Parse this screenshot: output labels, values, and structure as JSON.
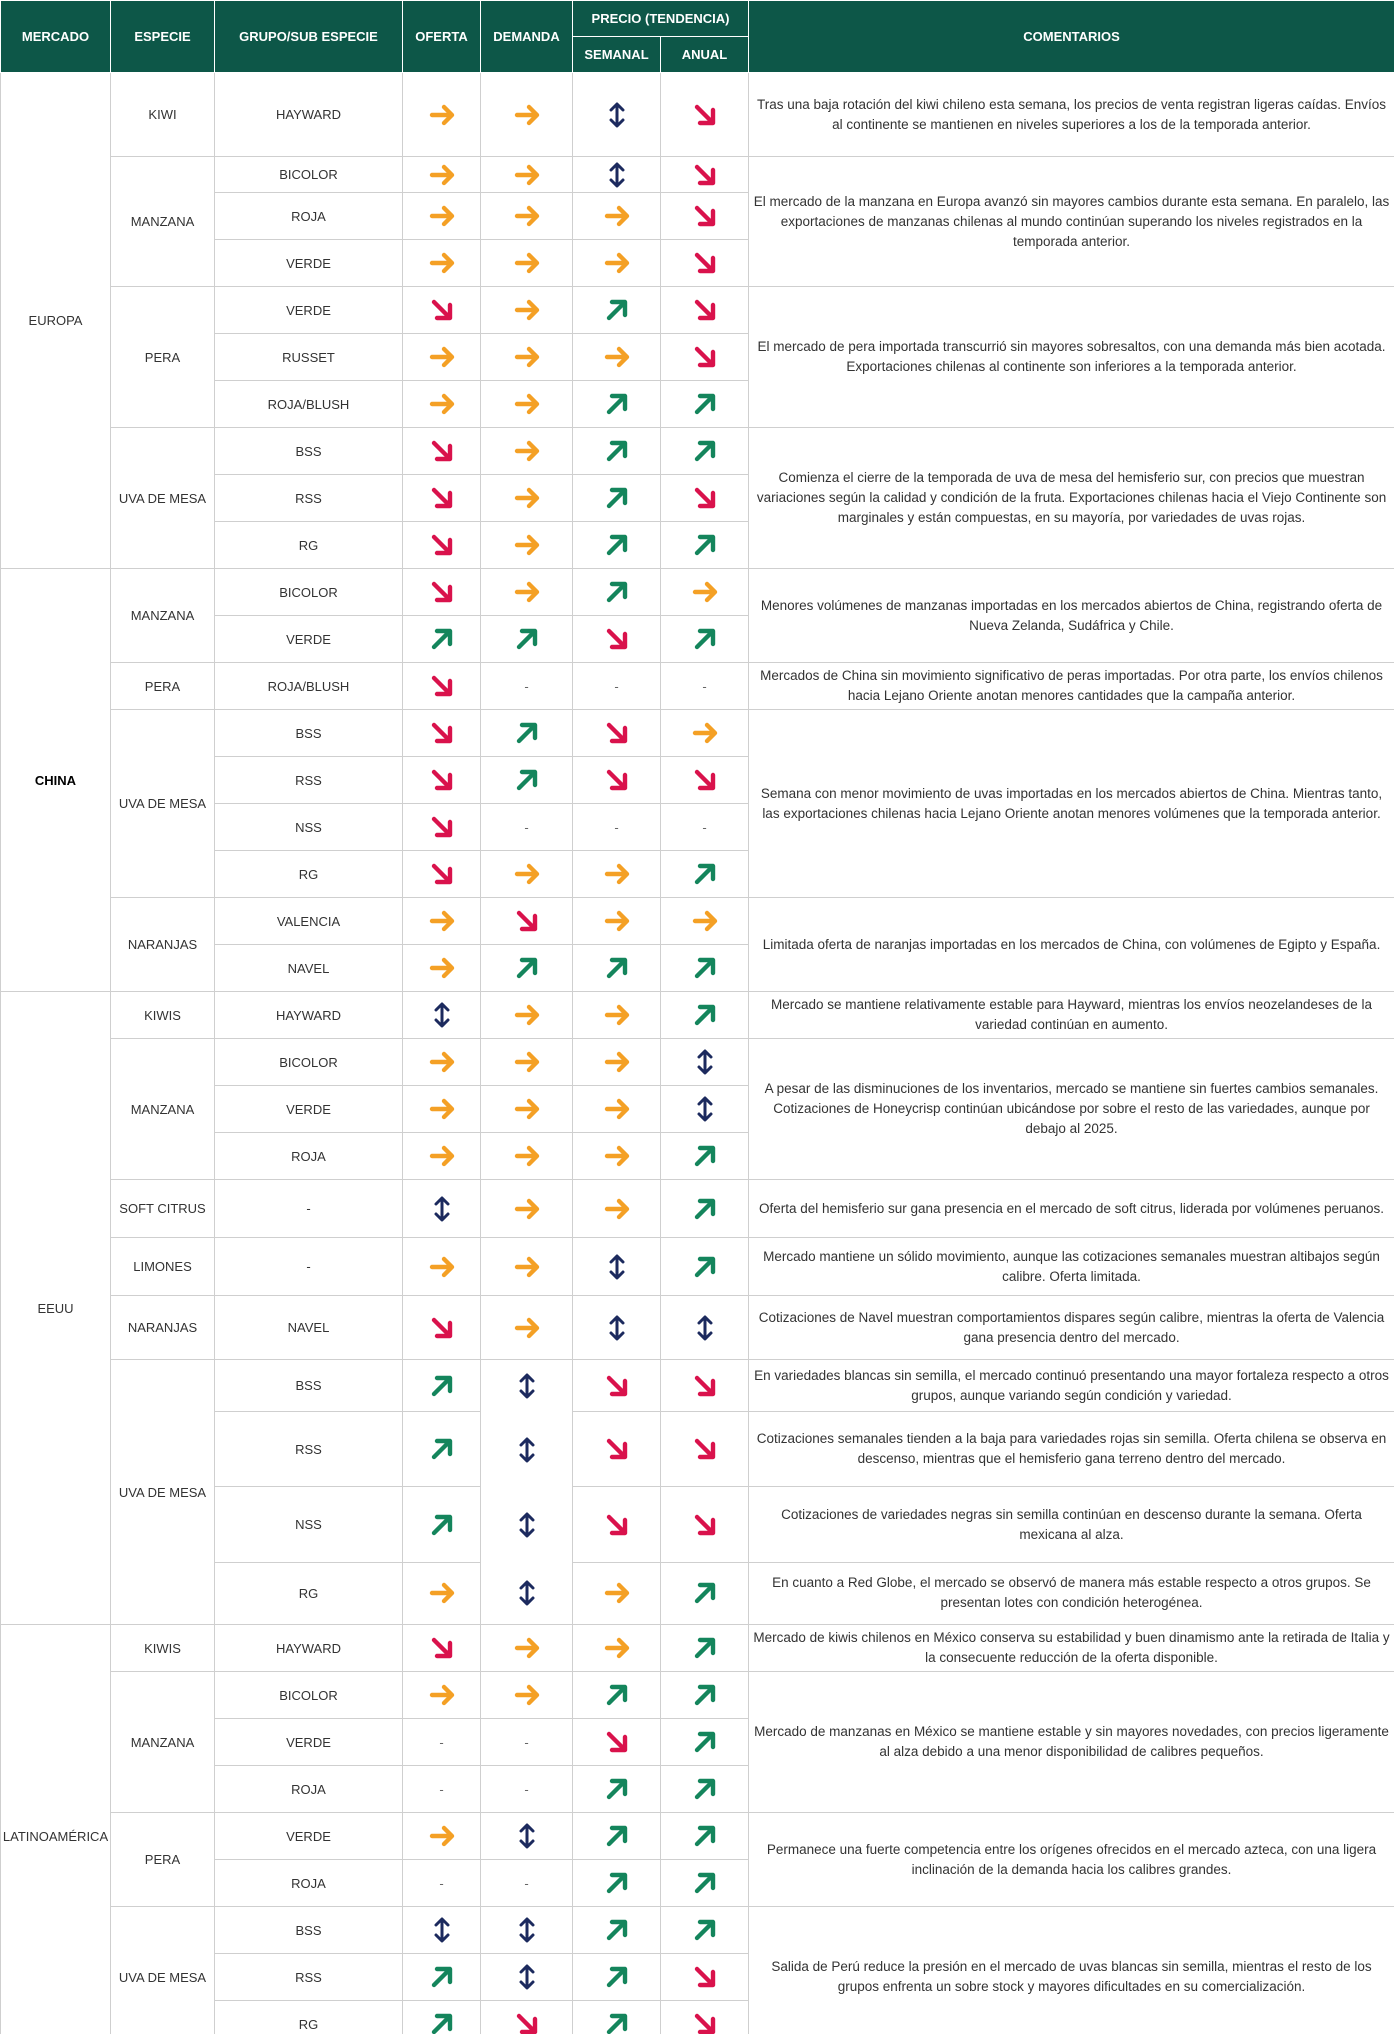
{
  "headers": {
    "mercado": "MERCADO",
    "especie": "ESPECIE",
    "grupo": "GRUPO/SUB ESPECIE",
    "oferta": "OFERTA",
    "demanda": "DEMANDA",
    "precio": "PRECIO (TENDENCIA)",
    "semanal": "SEMANAL",
    "anual": "ANUAL",
    "comentarios": "COMENTARIOS"
  },
  "legend_icons": {
    "right": "arrow-right-icon",
    "down": "arrow-down-right-icon",
    "up": "arrow-up-right-icon",
    "vertical": "arrow-up-down-icon",
    "none": "-"
  },
  "colors": {
    "header": "#0d5748",
    "right": "#f4a025",
    "down": "#d9124c",
    "up": "#14855c",
    "vertical": "#1c2a5e"
  },
  "markets": [
    {
      "name": "EUROPA",
      "species": [
        {
          "name": "KIWI",
          "groups": [
            {
              "name": "HAYWARD",
              "oferta": "right",
              "demanda": "right",
              "semanal": "vertical",
              "anual": "down"
            }
          ],
          "comments": [
            "Tras una baja rotación del kiwi chileno esta semana, los precios de venta registran ligeras caídas. Envíos al continente se mantienen en niveles superiores a los de la temporada anterior."
          ]
        },
        {
          "name": "MANZANA",
          "groups": [
            {
              "name": "BICOLOR",
              "oferta": "right",
              "demanda": "right",
              "semanal": "vertical",
              "anual": "down"
            },
            {
              "name": "ROJA",
              "oferta": "right",
              "demanda": "right",
              "semanal": "right",
              "anual": "down"
            },
            {
              "name": "VERDE",
              "oferta": "right",
              "demanda": "right",
              "semanal": "right",
              "anual": "down"
            }
          ],
          "comments": [
            "El mercado de la manzana en Europa avanzó sin mayores cambios durante esta semana. En paralelo, las exportaciones de manzanas chilenas al mundo continúan superando los niveles registrados en la temporada anterior."
          ]
        },
        {
          "name": "PERA",
          "groups": [
            {
              "name": "VERDE",
              "oferta": "down",
              "demanda": "right",
              "semanal": "up",
              "anual": "down"
            },
            {
              "name": "RUSSET",
              "oferta": "right",
              "demanda": "right",
              "semanal": "right",
              "anual": "down"
            },
            {
              "name": "ROJA/BLUSH",
              "oferta": "right",
              "demanda": "right",
              "semanal": "up",
              "anual": "up"
            }
          ],
          "comments": [
            "El mercado de pera importada transcurrió sin mayores sobresaltos, con una demanda más bien acotada. Exportaciones chilenas al continente son inferiores a la temporada anterior."
          ]
        },
        {
          "name": "UVA DE MESA",
          "groups": [
            {
              "name": "BSS",
              "oferta": "down",
              "demanda": "right",
              "semanal": "up",
              "anual": "up"
            },
            {
              "name": "RSS",
              "oferta": "down",
              "demanda": "right",
              "semanal": "up",
              "anual": "down"
            },
            {
              "name": "RG",
              "oferta": "down",
              "demanda": "right",
              "semanal": "up",
              "anual": "up"
            }
          ],
          "comments": [
            "Comienza el cierre de la temporada de uva de mesa del hemisferio sur, con precios que muestran variaciones según la calidad y condición de la fruta. Exportaciones chilenas hacia el Viejo Continente son marginales y están compuestas, en su mayoría, por variedades de uvas rojas."
          ]
        }
      ]
    },
    {
      "name": "CHINA",
      "species": [
        {
          "name": "MANZANA",
          "groups": [
            {
              "name": "BICOLOR",
              "oferta": "down",
              "demanda": "right",
              "semanal": "up",
              "anual": "right"
            },
            {
              "name": "VERDE",
              "oferta": "up",
              "demanda": "up",
              "semanal": "down",
              "anual": "up"
            }
          ],
          "comments": [
            "Menores volúmenes de manzanas importadas en los mercados abiertos de China, registrando oferta de Nueva Zelanda, Sudáfrica y Chile."
          ]
        },
        {
          "name": "PERA",
          "groups": [
            {
              "name": "ROJA/BLUSH",
              "oferta": "down",
              "demanda": "-",
              "semanal": "-",
              "anual": "-"
            }
          ],
          "comments": [
            "Mercados de China sin movimiento significativo de peras importadas. Por otra parte, los envíos chilenos hacia Lejano Oriente anotan menores cantidades que la campaña anterior."
          ]
        },
        {
          "name": "UVA DE MESA",
          "groups": [
            {
              "name": "BSS",
              "oferta": "down",
              "demanda": "up",
              "semanal": "down",
              "anual": "right"
            },
            {
              "name": "RSS",
              "oferta": "down",
              "demanda": "up",
              "semanal": "down",
              "anual": "down"
            },
            {
              "name": "NSS",
              "oferta": "down",
              "demanda": "-",
              "semanal": "-",
              "anual": "-"
            },
            {
              "name": "RG",
              "oferta": "down",
              "demanda": "right",
              "semanal": "right",
              "anual": "up"
            }
          ],
          "comments": [
            "Semana con menor movimiento de uvas importadas en los mercados abiertos de China. Mientras tanto, las exportaciones chilenas hacia Lejano Oriente anotan menores volúmenes que la temporada anterior."
          ]
        },
        {
          "name": "NARANJAS",
          "groups": [
            {
              "name": "VALENCIA",
              "oferta": "right",
              "demanda": "down",
              "semanal": "right",
              "anual": "right"
            },
            {
              "name": "NAVEL",
              "oferta": "right",
              "demanda": "up",
              "semanal": "up",
              "anual": "up"
            }
          ],
          "comments": [
            "Limitada oferta de naranjas importadas en los mercados de China, con volúmenes de Egipto y España."
          ]
        }
      ]
    },
    {
      "name": "EEUU",
      "species": [
        {
          "name": "KIWIS",
          "groups": [
            {
              "name": "HAYWARD",
              "oferta": "vertical",
              "demanda": "right",
              "semanal": "right",
              "anual": "up"
            }
          ],
          "comments": [
            "Mercado se mantiene relativamente estable para Hayward, mientras los envíos neozelandeses de la variedad continúan en aumento."
          ]
        },
        {
          "name": "MANZANA",
          "groups": [
            {
              "name": "BICOLOR",
              "oferta": "right",
              "demanda": "right",
              "semanal": "right",
              "anual": "vertical"
            },
            {
              "name": "VERDE",
              "oferta": "right",
              "demanda": "right",
              "semanal": "right",
              "anual": "vertical"
            },
            {
              "name": "ROJA",
              "oferta": "right",
              "demanda": "right",
              "semanal": "right",
              "anual": "up"
            }
          ],
          "comments": [
            "A pesar de las disminuciones de los inventarios, mercado se mantiene sin fuertes cambios semanales. Cotizaciones de Honeycrisp continúan ubicándose por sobre el resto de las variedades, aunque por debajo al 2025."
          ]
        },
        {
          "name": "SOFT CITRUS",
          "groups": [
            {
              "name": "-",
              "oferta": "vertical",
              "demanda": "right",
              "semanal": "right",
              "anual": "up"
            }
          ],
          "comments": [
            "Oferta del hemisferio sur gana presencia en el mercado de soft citrus, liderada por volúmenes peruanos."
          ]
        },
        {
          "name": "LIMONES",
          "groups": [
            {
              "name": "-",
              "oferta": "right",
              "demanda": "right",
              "semanal": "vertical",
              "anual": "up"
            }
          ],
          "comments": [
            "Mercado mantiene un sólido movimiento, aunque las cotizaciones semanales muestran altibajos según calibre. Oferta limitada."
          ]
        },
        {
          "name": "NARANJAS",
          "groups": [
            {
              "name": "NAVEL",
              "oferta": "down",
              "demanda": "right",
              "semanal": "vertical",
              "anual": "vertical"
            }
          ],
          "comments": [
            "Cotizaciones de Navel muestran comportamientos dispares según calibre, mientras la oferta de Valencia gana presencia dentro del mercado."
          ]
        },
        {
          "name": "UVA DE MESA",
          "demanda_merged": "vertical",
          "groups": [
            {
              "name": "BSS",
              "oferta": "up",
              "semanal": "down",
              "anual": "down"
            },
            {
              "name": "RSS",
              "oferta": "up",
              "semanal": "down",
              "anual": "down"
            },
            {
              "name": "NSS",
              "oferta": "up",
              "semanal": "down",
              "anual": "down"
            },
            {
              "name": "RG",
              "oferta": "right",
              "semanal": "right",
              "anual": "up"
            }
          ],
          "comments": [
            "En variedades blancas sin semilla, el mercado continuó presentando una mayor fortaleza respecto a otros grupos, aunque variando según condición y variedad.",
            "Cotizaciones semanales tienden a la baja para variedades rojas sin semilla. Oferta chilena se observa en descenso, mientras que el hemisferio gana terreno dentro del mercado.",
            "Cotizaciones de variedades negras sin semilla continúan en descenso durante la semana. Oferta mexicana al alza.",
            "En cuanto a Red Globe, el mercado se observó de manera más estable respecto a otros grupos. Se presentan lotes con condición heterogénea."
          ]
        }
      ]
    },
    {
      "name": "LATINOAMÉRICA",
      "species": [
        {
          "name": "KIWIS",
          "groups": [
            {
              "name": "HAYWARD",
              "oferta": "down",
              "demanda": "right",
              "semanal": "right",
              "anual": "up"
            }
          ],
          "comments": [
            "Mercado de kiwis chilenos en México conserva su estabilidad y buen dinamismo ante la retirada de Italia y la consecuente reducción de la oferta disponible."
          ]
        },
        {
          "name": "MANZANA",
          "groups": [
            {
              "name": "BICOLOR",
              "oferta": "right",
              "demanda": "right",
              "semanal": "up",
              "anual": "up"
            },
            {
              "name": "VERDE",
              "oferta": "-",
              "demanda": "-",
              "semanal": "down",
              "anual": "up"
            },
            {
              "name": "ROJA",
              "oferta": "-",
              "demanda": "-",
              "semanal": "up",
              "anual": "up"
            }
          ],
          "comments": [
            "Mercado de manzanas en México se mantiene estable y sin mayores novedades, con precios ligeramente al alza debido a una menor disponibilidad de calibres pequeños."
          ]
        },
        {
          "name": "PERA",
          "groups": [
            {
              "name": "VERDE",
              "oferta": "right",
              "demanda": "vertical",
              "semanal": "up",
              "anual": "up"
            },
            {
              "name": "ROJA",
              "oferta": "-",
              "demanda": "-",
              "semanal": "up",
              "anual": "up"
            }
          ],
          "comments": [
            "Permanece una fuerte competencia entre los orígenes ofrecidos en el mercado azteca, con una ligera inclinación de la demanda hacia los calibres grandes."
          ]
        },
        {
          "name": "UVA DE MESA",
          "groups": [
            {
              "name": "BSS",
              "oferta": "vertical",
              "demanda": "vertical",
              "semanal": "up",
              "anual": "up"
            },
            {
              "name": "RSS",
              "oferta": "up",
              "demanda": "vertical",
              "semanal": "up",
              "anual": "down"
            },
            {
              "name": "RG",
              "oferta": "up",
              "demanda": "down",
              "semanal": "up",
              "anual": "down"
            }
          ],
          "comments": [
            "Salida de Perú reduce la presión en el mercado de uvas blancas sin semilla, mientras el resto de los grupos enfrenta un sobre stock y mayores dificultades en su comercialización."
          ]
        }
      ]
    }
  ]
}
